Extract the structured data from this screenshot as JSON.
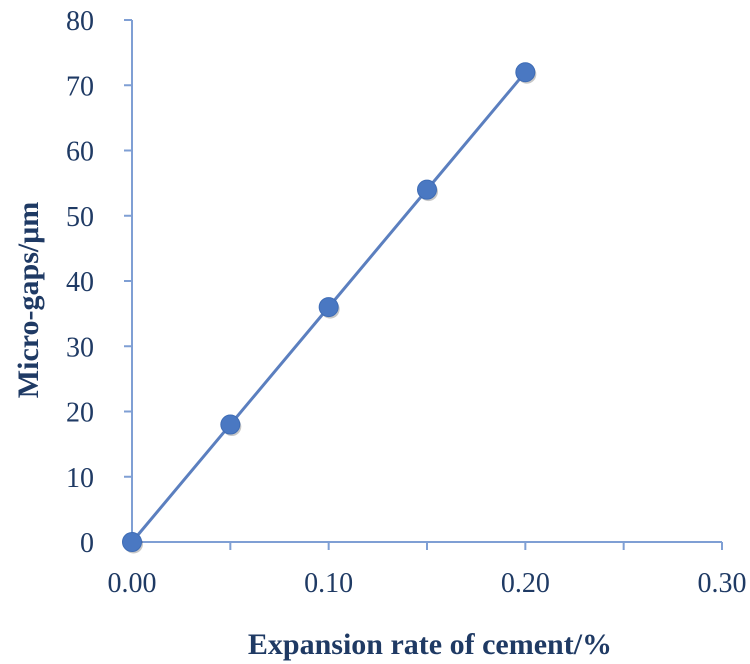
{
  "chart_data": {
    "type": "line",
    "title": "",
    "xlabel": "Expansion rate of cement/%",
    "ylabel": "Micro-gaps/μm",
    "xlim": [
      0,
      0.3
    ],
    "ylim": [
      0,
      80
    ],
    "x_ticks": [
      "0.00",
      "0.10",
      "0.20",
      "0.30"
    ],
    "y_ticks": [
      "0",
      "10",
      "20",
      "30",
      "40",
      "50",
      "60",
      "70",
      "80"
    ],
    "grid": false,
    "legend": "none",
    "series": [
      {
        "name": "Micro-gaps",
        "x": [
          0,
          0.05,
          0.1,
          0.15,
          0.2
        ],
        "y": [
          0,
          18,
          36,
          54,
          72
        ]
      }
    ],
    "colors": {
      "line": "#5b7fbf",
      "marker": "#4a78c2",
      "axis": "#7f9fd4",
      "text": "#1f3a64"
    }
  }
}
